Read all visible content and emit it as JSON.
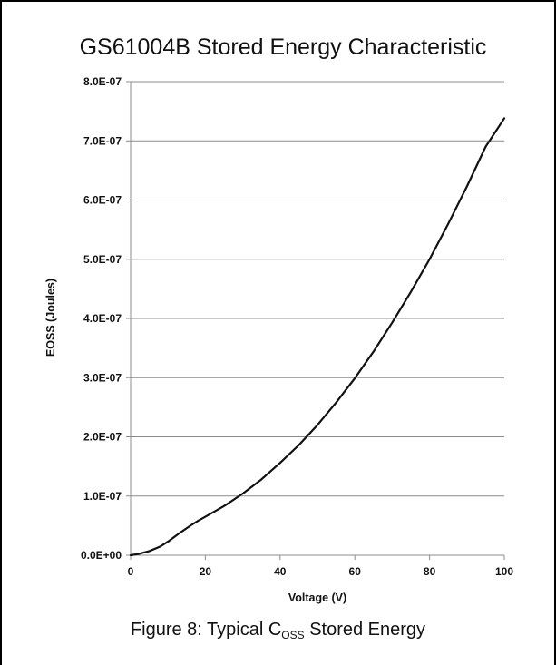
{
  "chart_data": {
    "type": "line",
    "title": "GS61004B Stored Energy Characteristic",
    "xlabel": "Voltage (V)",
    "ylabel": "EOSS (Joules)",
    "xlim": [
      0,
      100
    ],
    "ylim": [
      0,
      8e-07
    ],
    "x_ticks": [
      "0",
      "20",
      "40",
      "60",
      "80",
      "100"
    ],
    "y_ticks": [
      "0.0E+00",
      "1.0E-07",
      "2.0E-07",
      "3.0E-07",
      "4.0E-07",
      "5.0E-07",
      "6.0E-07",
      "7.0E-07",
      "8.0E-07"
    ],
    "grid": "horizontal",
    "series": [
      {
        "x": [
          0,
          2,
          5,
          8,
          10,
          13,
          16,
          18,
          20,
          25,
          30,
          35,
          40,
          45,
          50,
          55,
          60,
          65,
          70,
          75,
          80,
          85,
          90,
          95,
          100
        ],
        "y": [
          0.0,
          2e-09,
          7e-09,
          1.5e-08,
          2.3e-08,
          3.7e-08,
          5e-08,
          5.8e-08,
          6.5e-08,
          8.3e-08,
          1.04e-07,
          1.28e-07,
          1.56e-07,
          1.86e-07,
          2.2e-07,
          2.58e-07,
          2.99e-07,
          3.44e-07,
          3.93e-07,
          4.45e-07,
          5e-07,
          5.6e-07,
          6.23e-07,
          6.9e-07,
          7.38e-07
        ],
        "color": "#111111"
      }
    ]
  },
  "caption": {
    "prefix": "Figure 8: Typical C",
    "subscript": "OSS",
    "suffix": " Stored Energy"
  }
}
